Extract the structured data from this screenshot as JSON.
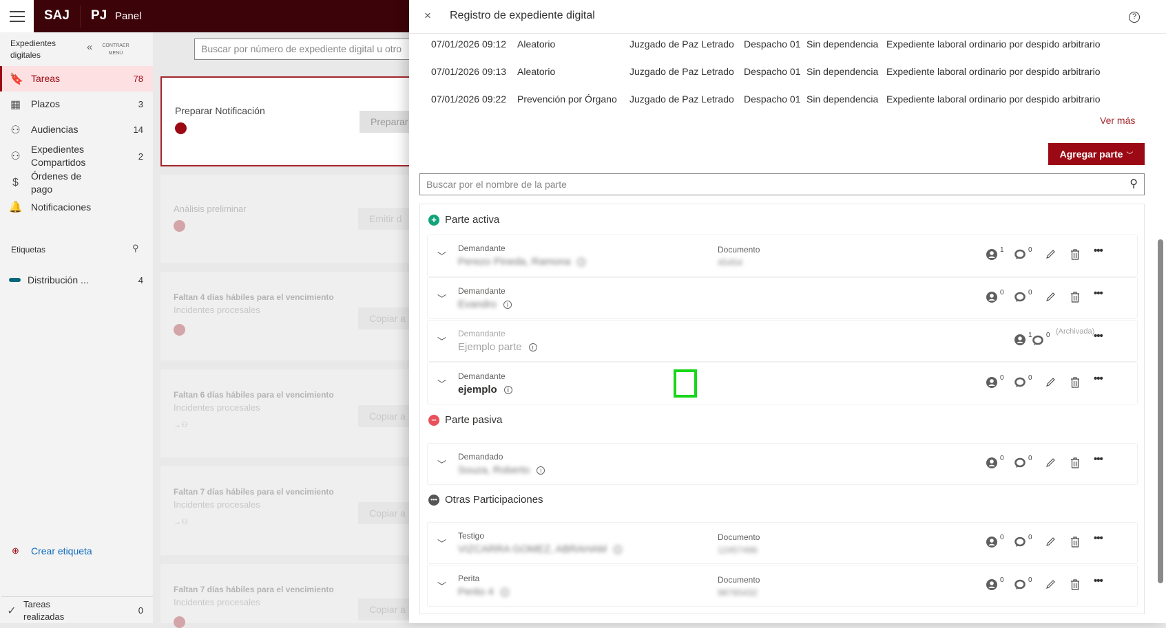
{
  "header": {
    "brand": "SAJ",
    "brand2": "PJ",
    "title": "Panel"
  },
  "sidebar": {
    "heading": "Expedientes digitales",
    "collapse": "CONTRAER MENÚ",
    "items": [
      {
        "label": "Tareas",
        "count": "78",
        "icon": "bookmark-icon"
      },
      {
        "label": "Plazos",
        "count": "3",
        "icon": "calendar-icon"
      },
      {
        "label": "Audiencias",
        "count": "14",
        "icon": "people-icon"
      },
      {
        "label": "Expedientes Compartidos",
        "count": "2",
        "icon": "shared-person-icon"
      },
      {
        "label": "Órdenes de pago",
        "count": "",
        "icon": "dollar-icon"
      },
      {
        "label": "Notificaciones",
        "count": "",
        "icon": "bell-icon"
      }
    ],
    "tags_heading": "Etiquetas",
    "tags": [
      {
        "label": "Distribución ...",
        "count": "4",
        "color": "#00687a"
      }
    ],
    "create_tag": "Crear etiqueta",
    "done": "Tareas realizadas",
    "done_count": "0"
  },
  "main": {
    "search_placeholder": "Buscar por número de expediente digital u otro",
    "cards": [
      {
        "title": "Preparar Notificación",
        "subtitle": "",
        "button": "Preparar"
      },
      {
        "title": "Análisis preliminar",
        "subtitle": "",
        "button": "Emitir d"
      },
      {
        "title": "Faltan 4 días hábiles para el vencimiento",
        "subtitle": "Incidentes procesales",
        "button": "Copiar a"
      },
      {
        "title": "Faltan 6 días hábiles para el vencimiento",
        "subtitle": "Incidentes procesales",
        "button": "Copiar a"
      },
      {
        "title": "Faltan 7 días hábiles para el vencimiento",
        "subtitle": "Incidentes procesales",
        "button": "Copiar a"
      },
      {
        "title": "Faltan 7 días hábiles para el vencimiento",
        "subtitle": "Incidentes procesales",
        "button": "Copiar a"
      }
    ]
  },
  "panel": {
    "title": "Registro de expediente digital",
    "history": [
      [
        "07/01/2026 09:12",
        "Aleatorio",
        "Juzgado de Paz Letrado",
        "Despacho 01",
        "Sin dependencia",
        "Expediente laboral ordinario por despido arbitrario"
      ],
      [
        "07/01/2026 09:13",
        "Aleatorio",
        "Juzgado de Paz Letrado",
        "Despacho 01",
        "Sin dependencia",
        "Expediente laboral ordinario por despido arbitrario"
      ],
      [
        "07/01/2026 09:22",
        "Prevención por Órgano",
        "Juzgado de Paz Letrado",
        "Despacho 01",
        "Sin dependencia",
        "Expediente laboral ordinario por despido arbitrario"
      ]
    ],
    "ver_mas": "Ver más",
    "add_party": "Agregar parte",
    "party_search_placeholder": "Buscar por el nombre de la parte",
    "sections": {
      "active": "Parte activa",
      "passive": "Parte pasiva",
      "other": "Otras Participaciones"
    },
    "parties": [
      {
        "role": "Demandante",
        "name": "Perezo Pineda, Ramona",
        "blurred": true,
        "doc_label": "Documento",
        "doc": "45454",
        "persons": "1",
        "comments": "0",
        "archived": ""
      },
      {
        "role": "Demandante",
        "name": "Evandro",
        "blurred": true,
        "doc_label": "",
        "doc": "",
        "persons": "0",
        "comments": "0",
        "archived": ""
      },
      {
        "role": "Demandante",
        "name": "Ejemplo parte",
        "blurred": false,
        "doc_label": "",
        "doc": "",
        "persons": "1",
        "comments": "0",
        "archived": "(Archivada)"
      },
      {
        "role": "Demandante",
        "name": "ejemplo",
        "blurred": false,
        "doc_label": "",
        "doc": "",
        "persons": "0",
        "comments": "0",
        "archived": ""
      },
      {
        "role": "Demandado",
        "name": "Souza, Roberto",
        "blurred": true,
        "doc_label": "",
        "doc": "",
        "persons": "0",
        "comments": "0",
        "archived": ""
      },
      {
        "role": "Testigo",
        "name": "VIZCARRA GOMEZ, ABRAHAM",
        "blurred": true,
        "doc_label": "Documento",
        "doc": "12457496",
        "persons": "0",
        "comments": "0",
        "archived": ""
      },
      {
        "role": "Perita",
        "name": "Perito 4",
        "blurred": true,
        "doc_label": "Documento",
        "doc": "98765432",
        "persons": "0",
        "comments": "0",
        "archived": ""
      }
    ]
  },
  "colors": {
    "brand": "#3c0309",
    "accent": "#9b0a14",
    "active": "#12a37a",
    "passive": "#e8505b",
    "highlight": "#18d619"
  }
}
